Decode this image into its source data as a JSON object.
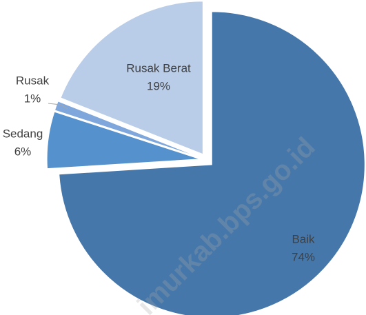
{
  "chart_data": {
    "type": "pie",
    "categories": [
      "Baik",
      "Sedang",
      "Rusak",
      "Rusak Berat"
    ],
    "values": [
      74,
      6,
      1,
      19
    ],
    "value_labels": [
      "74%",
      "6%",
      "1%",
      "19%"
    ],
    "colors": [
      "#4677aa",
      "#5591cd",
      "#7fa7dc",
      "#b9cde9"
    ],
    "watermark": "imurkab.bps.go.id"
  }
}
